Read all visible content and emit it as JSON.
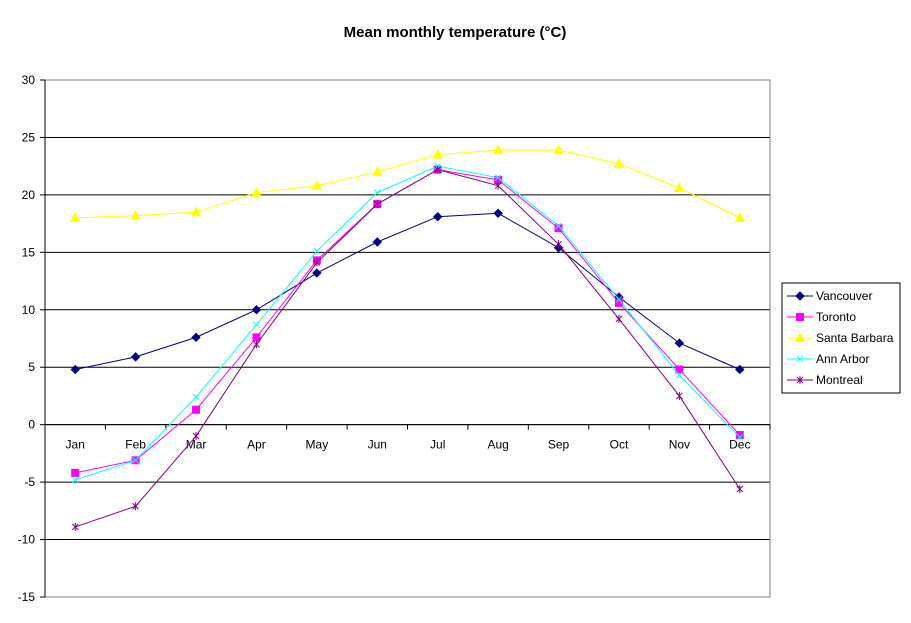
{
  "chart_data": {
    "type": "line",
    "title": "Mean monthly temperature (°C)",
    "xlabel": "",
    "ylabel": "",
    "categories": [
      "Jan",
      "Feb",
      "Mar",
      "Apr",
      "May",
      "Jun",
      "Jul",
      "Aug",
      "Sep",
      "Oct",
      "Nov",
      "Dec"
    ],
    "ylim": [
      -15,
      30
    ],
    "yticks": [
      -15,
      -10,
      -5,
      0,
      5,
      10,
      15,
      20,
      25,
      30
    ],
    "ytick_labels": [
      "-15",
      "-10",
      "-5",
      "0",
      "5",
      "10",
      "15",
      "20",
      "25",
      "30"
    ],
    "grid": true,
    "legend_position": "right",
    "series": [
      {
        "name": "Vancouver",
        "color": "#000080",
        "marker": "diamond",
        "values": [
          4.8,
          5.9,
          7.6,
          10.0,
          13.2,
          15.9,
          18.1,
          18.4,
          15.4,
          11.1,
          7.1,
          4.8
        ]
      },
      {
        "name": "Toronto",
        "color": "#FF00FF",
        "marker": "square",
        "values": [
          -4.2,
          -3.1,
          1.3,
          7.6,
          14.3,
          19.2,
          22.2,
          21.3,
          17.1,
          10.6,
          4.8,
          -0.9
        ]
      },
      {
        "name": "Santa Barbara",
        "color": "#FFFF00",
        "marker": "triangle",
        "values": [
          18.0,
          18.2,
          18.5,
          20.2,
          20.8,
          22.0,
          23.5,
          23.9,
          23.9,
          22.7,
          20.6,
          18.0
        ]
      },
      {
        "name": "Ann Arbor",
        "color": "#00FFFF",
        "marker": "x",
        "values": [
          -4.8,
          -3.1,
          2.4,
          8.7,
          15.1,
          20.2,
          22.5,
          21.5,
          17.3,
          10.9,
          4.3,
          -1.1
        ]
      },
      {
        "name": "Montreal",
        "color": "#800080",
        "marker": "star",
        "values": [
          -8.9,
          -7.1,
          -1.0,
          7.0,
          14.1,
          19.2,
          22.2,
          20.8,
          15.7,
          9.2,
          2.5,
          -5.6
        ]
      }
    ]
  }
}
